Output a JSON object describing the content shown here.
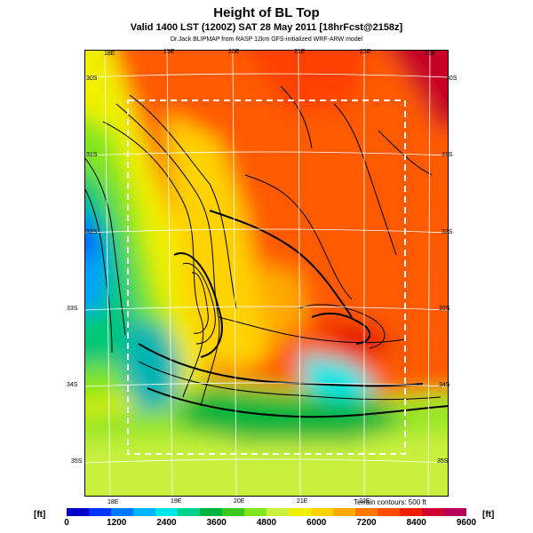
{
  "title": "Height of BL Top",
  "subtitle": "Valid 1400 LST (1200Z) SAT 28 May 2011 [18hrFcst@2158z]",
  "credit": "Dr.Jack BLIPMAP from RASP 12km GFS-initialized WRF-ARW model",
  "terrain_note": "Terrain contours: 500 ft",
  "lon_labels_top": [
    "18E",
    "19E",
    "20E",
    "21E",
    "22E",
    "23E"
  ],
  "lon_labels_bottom": [
    "18E",
    "19E",
    "20E",
    "21E",
    "22E"
  ],
  "lat_labels_left": [
    "30S",
    "31S",
    "32S",
    "33S",
    "34S",
    "35S"
  ],
  "lat_labels_right": [
    "30S",
    "31S",
    "32S",
    "33S",
    "34S",
    "35S"
  ],
  "colorbar": {
    "unit_left": "[ft]",
    "unit_right": "[ft]",
    "ticks": [
      "0",
      "1200",
      "2400",
      "3600",
      "4800",
      "6000",
      "7200",
      "8400",
      "9600"
    ],
    "colors": [
      "#0000c8",
      "#0032ff",
      "#0078ff",
      "#00b4ff",
      "#00e6e6",
      "#00d28c",
      "#00b43c",
      "#3cc81e",
      "#82e61e",
      "#c8f03c",
      "#f0f000",
      "#ffd200",
      "#ffaa00",
      "#ff7800",
      "#ff4b00",
      "#f01e00",
      "#d20032",
      "#b4005a"
    ]
  }
}
